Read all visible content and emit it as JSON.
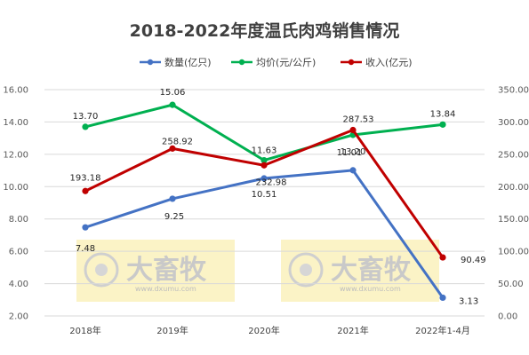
{
  "chart_data": {
    "type": "line",
    "title": "2018-2022年度温氏肉鸡销售情况",
    "categories": [
      "2018年",
      "2019年",
      "2020年",
      "2021年",
      "2022年1-4月"
    ],
    "y_left": {
      "min": 2,
      "max": 16,
      "step": 2,
      "ticks": [
        "2.00",
        "4.00",
        "6.00",
        "8.00",
        "10.00",
        "12.00",
        "14.00",
        "16.00"
      ]
    },
    "y_right": {
      "min": 0,
      "max": 350,
      "step": 50,
      "ticks": [
        "0.00",
        "50.00",
        "100.00",
        "150.00",
        "200.00",
        "250.00",
        "300.00",
        "350.00"
      ]
    },
    "grid": true,
    "legend_position": "top",
    "series": [
      {
        "name": "数量(亿只)",
        "axis": "left",
        "color": "#4472c4",
        "values": [
          7.48,
          9.25,
          10.51,
          11.01,
          3.13
        ],
        "labels": [
          "7.48",
          "9.25",
          "10.51",
          "11.01",
          "3.13"
        ]
      },
      {
        "name": "均价(元/公斤)",
        "axis": "left",
        "color": "#00b050",
        "values": [
          13.7,
          15.06,
          11.63,
          13.2,
          13.84
        ],
        "labels": [
          "13.70",
          "15.06",
          "11.63",
          "13.20",
          "13.84"
        ]
      },
      {
        "name": "收入(亿元)",
        "axis": "right",
        "color": "#c00000",
        "values": [
          193.18,
          258.92,
          232.98,
          287.53,
          90.49
        ],
        "labels": [
          "193.18",
          "258.92",
          "232.98",
          "287.53",
          "90.49"
        ]
      }
    ]
  },
  "watermark": {
    "text": "大畜牧",
    "sub": "www.dxumu.com"
  }
}
